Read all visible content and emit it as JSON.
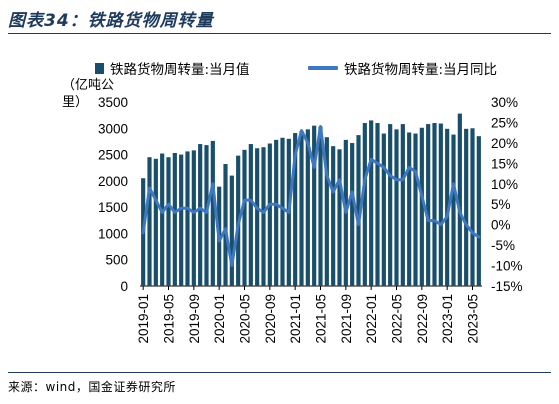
{
  "figure_title": "图表34：铁路货物周转量",
  "source": "来源：wind，国金证券研究所",
  "chart_data": {
    "type": "bar",
    "title": "",
    "y_unit_label": "（亿吨公里）",
    "colors": {
      "bar": "#1a4f6b",
      "line": "#3d78c1",
      "title": "#1f3b5c"
    },
    "x_tick_labels": [
      "2019-01",
      "2019-05",
      "2019-09",
      "2020-01",
      "2020-05",
      "2020-09",
      "2021-01",
      "2021-05",
      "2021-09",
      "2022-01",
      "2022-05",
      "2022-09",
      "2023-01",
      "2023-05"
    ],
    "left_axis": {
      "ylim": [
        0,
        3500
      ],
      "ticks": [
        "0",
        "500",
        "1000",
        "1500",
        "2000",
        "2500",
        "3000",
        "3500"
      ]
    },
    "right_axis": {
      "ylim": [
        -15,
        30
      ],
      "ticks": [
        "-15%",
        "-10%",
        "-5%",
        "0%",
        "5%",
        "10%",
        "15%",
        "20%",
        "25%",
        "30%"
      ]
    },
    "legend_position": "top",
    "series": [
      {
        "name": "铁路货物周转量:当月值",
        "type": "bar",
        "axis": "left",
        "values": [
          2050,
          2450,
          2420,
          2520,
          2450,
          2530,
          2500,
          2560,
          2580,
          2700,
          2680,
          2760,
          1890,
          2320,
          2100,
          2480,
          2590,
          2700,
          2620,
          2640,
          2710,
          2780,
          2820,
          2800,
          2910,
          2950,
          2980,
          3050,
          3030,
          2830,
          2660,
          2600,
          2780,
          2720,
          2870,
          3100,
          3150,
          3100,
          2900,
          3080,
          2980,
          3080,
          2920,
          2900,
          3010,
          3080,
          3100,
          3090,
          2990,
          2880,
          3280,
          2990,
          3000,
          2850
        ]
      },
      {
        "name": "铁路货物周转量:当月同比",
        "type": "line",
        "axis": "right",
        "values": [
          -2,
          9,
          6,
          3,
          5,
          3,
          4,
          4,
          3,
          4,
          3,
          10,
          -4,
          -1,
          -10,
          0,
          6,
          6,
          4,
          3,
          5,
          5,
          4,
          3,
          17,
          23,
          20,
          14,
          24,
          12,
          8,
          11,
          3,
          8,
          0,
          11,
          16,
          15,
          14,
          12,
          11,
          11,
          14,
          13,
          7,
          1,
          1,
          0,
          2,
          10,
          3,
          0,
          -2,
          -3
        ]
      }
    ]
  }
}
